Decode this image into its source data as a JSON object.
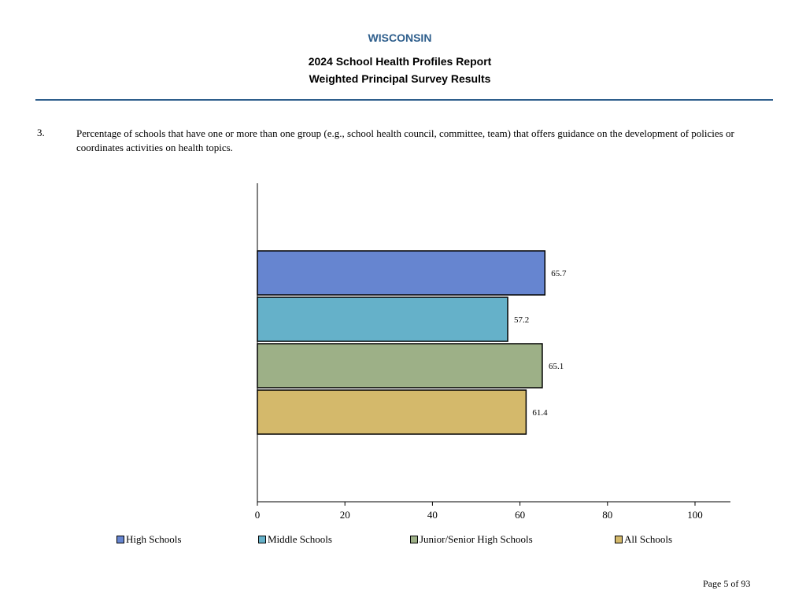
{
  "header": {
    "state": "WISCONSIN",
    "title_line1": "2024 School Health Profiles Report",
    "title_line2": "Weighted Principal Survey Results"
  },
  "question": {
    "number": "3.",
    "text": "Percentage of schools that have one or more than one group (e.g., school health council, committee, team) that offers guidance on the development of policies or coordinates activities on health topics."
  },
  "chart_data": {
    "type": "bar",
    "orientation": "horizontal",
    "categories": [
      "High Schools",
      "Middle Schools",
      "Junior/Senior High Schools",
      "All Schools"
    ],
    "values": [
      65.7,
      57.2,
      65.1,
      61.4
    ],
    "colors": [
      "#6685d0",
      "#65b1c9",
      "#9db087",
      "#d4b96b"
    ],
    "xlim": [
      0,
      108
    ],
    "xticks": [
      0,
      20,
      40,
      60,
      80,
      100
    ],
    "xtick_labels": [
      "0",
      "20",
      "40",
      "60",
      "80",
      "100"
    ],
    "data_labels": [
      "65.7",
      "57.2",
      "65.1",
      "61.4"
    ],
    "title": "",
    "xlabel": "",
    "ylabel": ""
  },
  "legend": [
    {
      "label": "High Schools",
      "color": "#6685d0"
    },
    {
      "label": "Middle Schools",
      "color": "#65b1c9"
    },
    {
      "label": "Junior/Senior High Schools",
      "color": "#9db087"
    },
    {
      "label": "All Schools",
      "color": "#d4b96b"
    }
  ],
  "footer": {
    "page": "Page 5 of 93"
  }
}
